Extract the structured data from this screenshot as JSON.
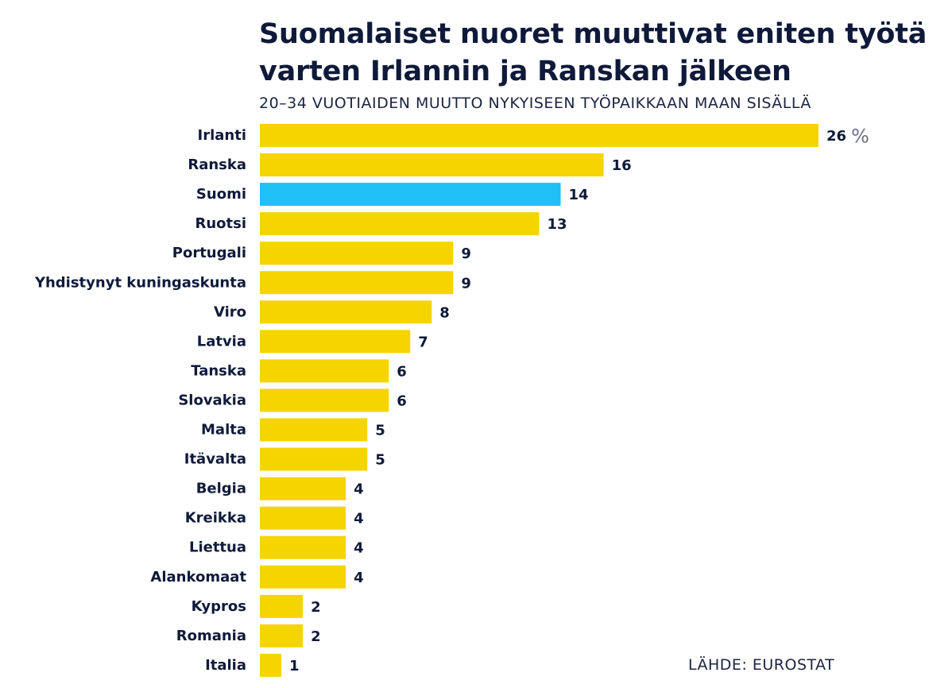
{
  "chart_data": {
    "type": "bar",
    "orientation": "horizontal",
    "title": "Suomalaiset nuoret muuttivat eniten työtä varten Irlannin ja Ranskan jälkeen",
    "subtitle": "20–34 VUOTIAIDEN MUUTTO NYKYISEEN TYÖPAIKKAAN MAAN SISÄLLÄ",
    "source": "LÄHDE: EUROSTAT",
    "unit": "%",
    "categories": [
      "Irlanti",
      "Ranska",
      "Suomi",
      "Ruotsi",
      "Portugali",
      "Yhdistynyt kuningaskunta",
      "Viro",
      "Latvia",
      "Tanska",
      "Slovakia",
      "Malta",
      "Itävalta",
      "Belgia",
      "Kreikka",
      "Liettua",
      "Alankomaat",
      "Kypros",
      "Romania",
      "Italia"
    ],
    "values": [
      26,
      16,
      14,
      13,
      9,
      9,
      8,
      7,
      6,
      6,
      5,
      5,
      4,
      4,
      4,
      4,
      2,
      2,
      1
    ],
    "highlight": "Suomi",
    "colors": {
      "bar": "#f5d400",
      "highlight": "#1fc0f5",
      "text": "#0f1a3a",
      "unit": "#6b7085"
    },
    "xlim": [
      0,
      26
    ],
    "grid": false,
    "legend": "none"
  }
}
